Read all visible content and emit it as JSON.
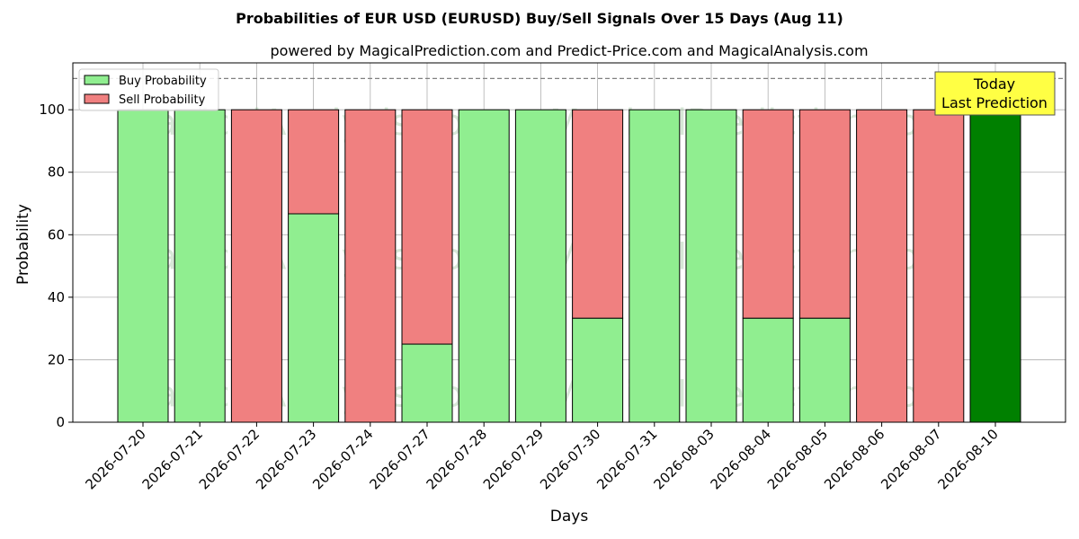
{
  "chart_data": {
    "type": "bar",
    "title": "Probabilities of EUR USD (EURUSD) Buy/Sell Signals Over 15 Days (Aug 11)",
    "subtitle": "powered by MagicalPrediction.com and Predict-Price.com and MagicalAnalysis.com",
    "xlabel": "Days",
    "ylabel": "Probability",
    "ylim": [
      0,
      115
    ],
    "yticks": [
      0,
      20,
      40,
      60,
      80,
      100
    ],
    "grid": true,
    "stacked": true,
    "legend_position": "top-left",
    "categories": [
      "2026-07-20",
      "2026-07-21",
      "2026-07-22",
      "2026-07-23",
      "2026-07-24",
      "2026-07-27",
      "2026-07-28",
      "2026-07-29",
      "2026-07-30",
      "2026-07-31",
      "2026-08-03",
      "2026-08-04",
      "2026-08-05",
      "2026-08-06",
      "2026-08-07",
      "2026-08-10"
    ],
    "series": [
      {
        "name": "Buy Probability",
        "color": "#90ee90",
        "values": [
          100,
          100,
          0,
          66.7,
          0,
          25,
          100,
          100,
          33.3,
          100,
          100,
          33.3,
          33.3,
          0,
          0,
          100
        ]
      },
      {
        "name": "Sell Probability",
        "color": "#f08080",
        "values": [
          0,
          0,
          100,
          33.3,
          100,
          75,
          0,
          0,
          66.7,
          0,
          0,
          66.7,
          66.7,
          100,
          100,
          0
        ]
      }
    ],
    "highlight": {
      "index": 15,
      "color": "#008000"
    },
    "reference_line": {
      "y": 110,
      "style": "dashed",
      "color": "#808080"
    },
    "annotation": {
      "lines": [
        "Today",
        "Last Prediction"
      ],
      "color": "#ffff44"
    },
    "watermarks": [
      "MagicalAnalysis.com",
      "MagicalPrediction.com"
    ]
  }
}
